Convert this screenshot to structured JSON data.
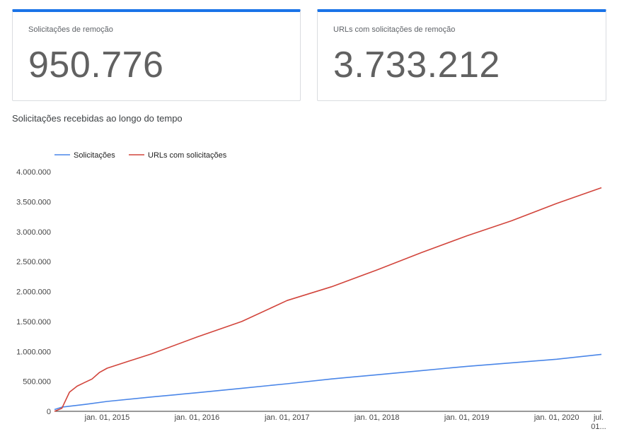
{
  "cards": [
    {
      "label": "Solicitações de remoção",
      "value": "950.776"
    },
    {
      "label": "URLs com solicitações de remoção",
      "value": "3.733.212"
    }
  ],
  "section_title": "Solicitações recebidas ao longo do tempo",
  "colors": {
    "accent": "#1a73e8",
    "series_blue": "#4a86e8",
    "series_red": "#d2453c"
  },
  "chart_data": {
    "type": "line",
    "legend_position": "top-left",
    "grid": false,
    "ylim": [
      0,
      4000000
    ],
    "y_ticks": [
      0,
      500000,
      1000000,
      1500000,
      2000000,
      2500000,
      3000000,
      3500000,
      4000000
    ],
    "y_tick_labels": [
      "0",
      "500.000",
      "1.000.000",
      "1.500.000",
      "2.000.000",
      "2.500.000",
      "3.000.000",
      "3.500.000",
      "4.000.000"
    ],
    "x_range": [
      "2014-06-01",
      "2020-07-01"
    ],
    "x_ticks": [
      "2015-01-01",
      "2016-01-01",
      "2017-01-01",
      "2018-01-01",
      "2019-01-01",
      "2020-01-01",
      "2020-07-01"
    ],
    "x_tick_labels": [
      "jan. 01, 2015",
      "jan. 01, 2016",
      "jan. 01, 2017",
      "jan. 01, 2018",
      "jan. 01, 2019",
      "jan. 01, 2020",
      "jul. 01..."
    ],
    "series": [
      {
        "name": "Solicitações",
        "color": "#4a86e8",
        "points": [
          [
            "2014-06-01",
            30000
          ],
          [
            "2014-07-01",
            70000
          ],
          [
            "2014-10-01",
            115000
          ],
          [
            "2015-01-01",
            165000
          ],
          [
            "2015-07-01",
            240000
          ],
          [
            "2016-01-01",
            310000
          ],
          [
            "2016-07-01",
            385000
          ],
          [
            "2017-01-01",
            460000
          ],
          [
            "2017-07-01",
            540000
          ],
          [
            "2018-01-01",
            610000
          ],
          [
            "2018-07-01",
            680000
          ],
          [
            "2019-01-01",
            750000
          ],
          [
            "2019-07-01",
            810000
          ],
          [
            "2020-01-01",
            870000
          ],
          [
            "2020-07-01",
            950776
          ]
        ]
      },
      {
        "name": "URLs com solicitações",
        "color": "#d2453c",
        "points": [
          [
            "2014-06-01",
            0
          ],
          [
            "2014-07-01",
            50000
          ],
          [
            "2014-08-01",
            320000
          ],
          [
            "2014-09-01",
            420000
          ],
          [
            "2014-10-01",
            480000
          ],
          [
            "2014-11-01",
            540000
          ],
          [
            "2014-12-01",
            650000
          ],
          [
            "2015-01-01",
            720000
          ],
          [
            "2015-04-01",
            840000
          ],
          [
            "2015-07-01",
            960000
          ],
          [
            "2016-01-01",
            1240000
          ],
          [
            "2016-07-01",
            1500000
          ],
          [
            "2017-01-01",
            1850000
          ],
          [
            "2017-07-01",
            2080000
          ],
          [
            "2018-01-01",
            2360000
          ],
          [
            "2018-07-01",
            2650000
          ],
          [
            "2019-01-01",
            2930000
          ],
          [
            "2019-07-01",
            3180000
          ],
          [
            "2020-01-01",
            3470000
          ],
          [
            "2020-07-01",
            3733212
          ]
        ]
      }
    ]
  }
}
